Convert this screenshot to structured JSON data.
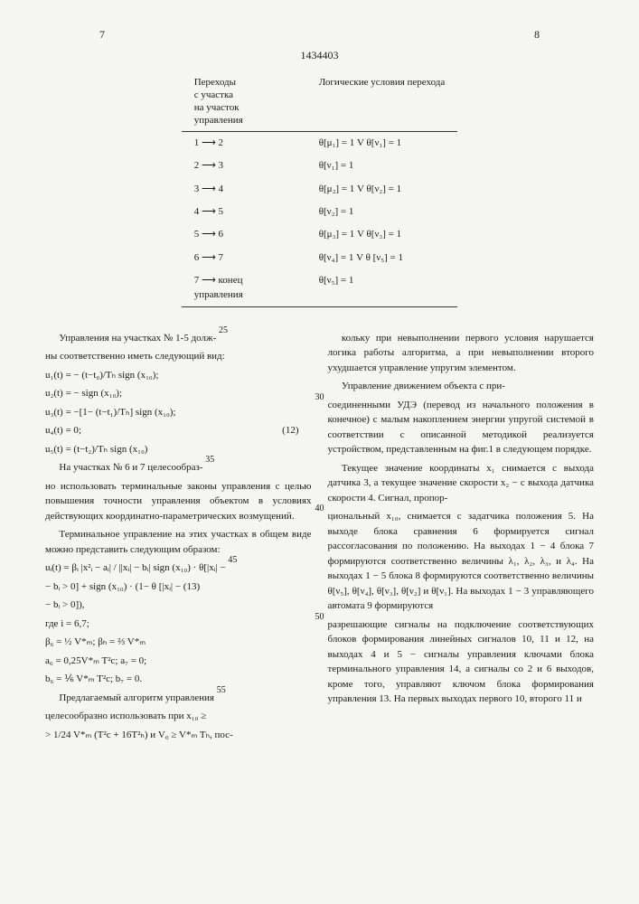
{
  "page_left": "7",
  "page_right": "8",
  "patent_number": "1434403",
  "table": {
    "header_left": "Переходы\nс участка\nна участок\nуправления",
    "header_right": "Логические условия перехода",
    "rows": [
      {
        "from": "1",
        "to": "2",
        "cond": "θ[μ₁] = 1 V   θ[ν₁] = 1"
      },
      {
        "from": "2",
        "to": "3",
        "cond": "θ[ν₁] = 1"
      },
      {
        "from": "3",
        "to": "4",
        "cond": "θ[μ₂] = 1 V   θ[ν₂] = 1"
      },
      {
        "from": "4",
        "to": "5",
        "cond": "θ[ν₂] = 1"
      },
      {
        "from": "5",
        "to": "6",
        "cond": "θ[μ₃] = 1 V   θ[ν₃] = 1"
      },
      {
        "from": "6",
        "to": "7",
        "cond": "θ[ν₄] = 1 V   θ [ν₅] = 1"
      },
      {
        "from": "7",
        "to": "конец\nуправления",
        "cond": "θ[ν₅] = 1"
      }
    ]
  },
  "left_col": {
    "p1": "Управления на участках № 1-5 долж-",
    "ln25": "25",
    "p1b": "ны соответственно иметь следующий вид:",
    "eq1": "u₁(t) = − (t−t₀)/Tₕ sign (x₁₀);",
    "eq2": "u₂(t) = − sign (x₁₀);",
    "eq3": "u₃(t) = −[1− (t−t₁)/Tₕ] sign (x₁₀);",
    "eq4": "u₄(t) = 0;",
    "eq4r": "(12)",
    "eq5": "u₅(t) = (t−t₂)/Tₕ  sign (x₁₀)",
    "p2": "На участках № 6 и 7 целесообраз-",
    "ln35": "35",
    "p2b": "но использовать терминальные законы управления с целью повышения точности управления объектом в условиях действующих координатно-параметрических возмущений.",
    "p3": "Терминальное управление на этих участках в общем виде можно представить следующим образом:",
    "eq6a": "uᵢ(t) = βᵢ |x²ᵢ − aᵢ| / ||xᵢ| − bᵢ| sign (x₁₀) · θ[|xᵢ| −",
    "ln45": "45",
    "eq6b": "− bᵢ > 0] + sign (x₁₀) · (1− θ [|xᵢ| −   (13)",
    "eq6c": "− bᵢ > 0]),",
    "eq_where": "где i = 6,7;",
    "eq7": "β₆ = ½ V*ₘ;   βₕ = ⅔ V*ₘ",
    "eq8": "a₆ = 0,25V*ₘ T²c;  a₇ = 0;",
    "eq9": "b₆ = ⅙ V*ₘ T²c;  b₇ = 0.",
    "p4": "Предлагаемый алгоритм управления",
    "ln55": "55",
    "p4b": "целесообразно использовать при x₁₀ ≥",
    "eq10": "> 1/24 V*ₘ (T²c + 16T²ₕ) и V₀ ≥ V*ₘ Tₕ, пос-"
  },
  "right_col": {
    "p1": "кольку при невыполнении первого условия нарушается логика работы алгоритма, а при невыполнении второго ухудшается управление упругим элементом.",
    "p2": "Управление движением объекта с при-",
    "ln30": "30",
    "p2b": "соединенными УДЭ (перевод из начального положения в конечное) с малым накоплением энергии упругой системой в соответствии с описанной методикой реализуется устройством, представленным на фиг.1 в следующем порядке.",
    "p3": "Текущее значение координаты x₁ снимается с выхода датчика 3, а текущее значение скорости x₂ − с выхода датчика скорости 4. Сигнал, пропор-",
    "ln40": "40",
    "p3b": "циональный x₁₀, снимается с задатчика положения 5. На выходе блока сравнения 6 формируется сигнал рассогласования по положению. На выходах 1 − 4 блока 7 формируются соответственно величины  λ₁, λ₂, λ₃, и λ₄. На выходах 1 − 5 блока 8 формируются соответственно величины θ[ν₅], θ[ν₄], θ[ν₃], θ[ν₂] и θ[ν₁]. На выходах 1 − 3 управляющего автомата 9 формируются",
    "ln50": "50",
    "p3c": "разрешающие сигналы на подключение соответствующих блоков формирования линейных сигналов 10, 11 и 12, на выходах 4 и 5 − сигналы управления ключами блока терминального управления 14, а сигналы со 2 и 6 выходов, кроме того, управляют ключом блока формирования управления 13. На первых выходах первого 10, второго 11 и"
  }
}
